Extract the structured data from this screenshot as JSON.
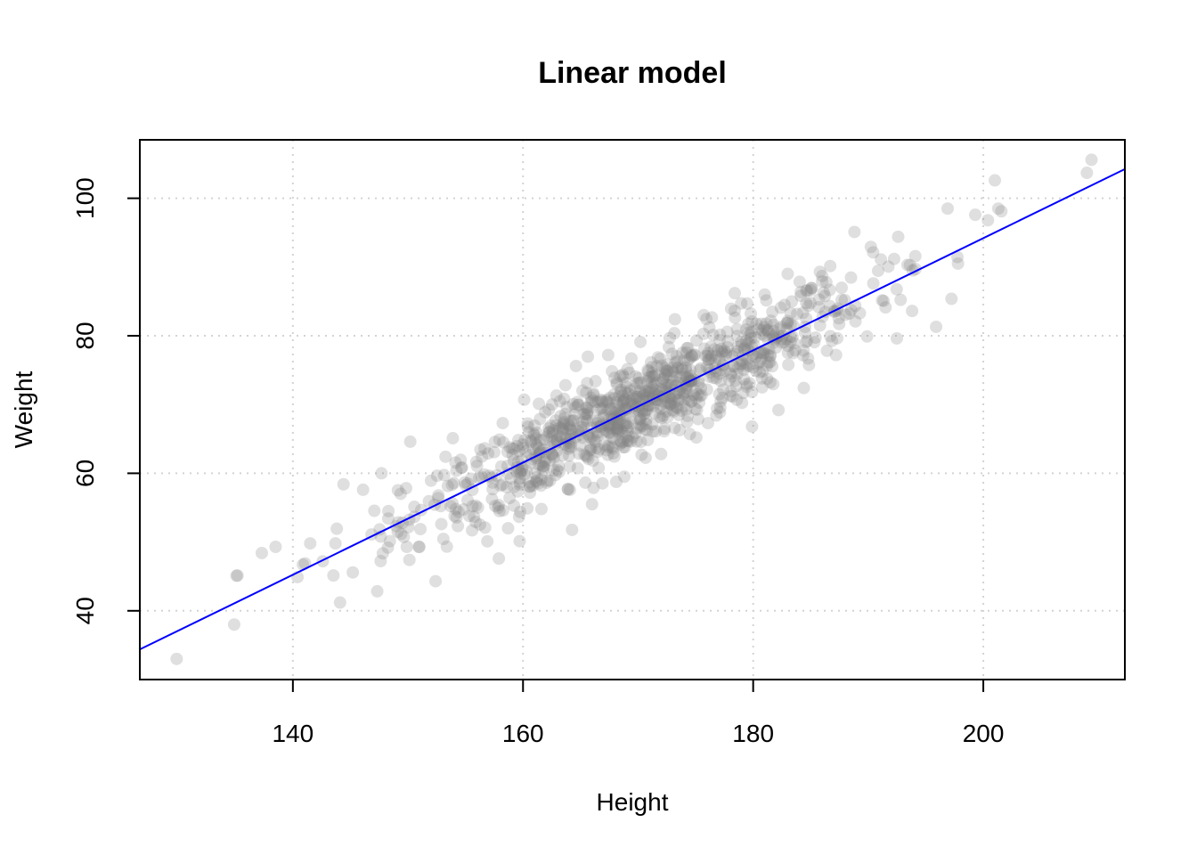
{
  "chart_data": {
    "type": "scatter",
    "title": "Linear model",
    "xlabel": "Height",
    "ylabel": "Weight",
    "xlim": [
      126.7,
      212.3
    ],
    "ylim": [
      30.0,
      108.5
    ],
    "x_ticks": [
      140,
      160,
      180,
      200
    ],
    "y_ticks": [
      40,
      60,
      80,
      100
    ],
    "grid": true,
    "point_color": "#808080",
    "line_color": "#0000ff",
    "fit_line": {
      "slope": 0.816,
      "intercept": -69.0
    },
    "n_points": 1000,
    "points": [
      [
        129.9,
        33.0
      ],
      [
        134.9,
        38.0
      ],
      [
        135.1,
        45.1
      ],
      [
        137.3,
        48.4
      ],
      [
        138.5,
        49.3
      ],
      [
        140.4,
        44.9
      ],
      [
        142.6,
        47.2
      ],
      [
        143.7,
        49.8
      ],
      [
        144.1,
        41.2
      ],
      [
        144.4,
        58.4
      ],
      [
        146.1,
        57.6
      ],
      [
        147.7,
        60.0
      ],
      [
        148.3,
        54.5
      ],
      [
        149.9,
        49.3
      ],
      [
        150.2,
        64.6
      ],
      [
        152.4,
        44.3
      ],
      [
        153.9,
        65.1
      ],
      [
        155.2,
        58.5
      ],
      [
        156.9,
        50.1
      ],
      [
        157.9,
        47.6
      ],
      [
        158.7,
        52.0
      ],
      [
        160.1,
        70.7
      ],
      [
        161.6,
        54.8
      ],
      [
        162.9,
        71.3
      ],
      [
        163.9,
        57.7
      ],
      [
        164.6,
        75.6
      ],
      [
        166.0,
        55.5
      ],
      [
        167.4,
        77.2
      ],
      [
        168.8,
        59.5
      ],
      [
        170.2,
        79.1
      ],
      [
        172.0,
        62.8
      ],
      [
        173.2,
        82.4
      ],
      [
        174.5,
        65.7
      ],
      [
        175.7,
        83.0
      ],
      [
        176.8,
        68.4
      ],
      [
        178.4,
        86.2
      ],
      [
        179.9,
        66.8
      ],
      [
        181.0,
        86.0
      ],
      [
        182.2,
        69.2
      ],
      [
        183.0,
        89.0
      ],
      [
        184.4,
        72.4
      ],
      [
        185.8,
        89.3
      ],
      [
        187.2,
        77.2
      ],
      [
        188.8,
        95.1
      ],
      [
        189.9,
        79.9
      ],
      [
        191.1,
        91.1
      ],
      [
        192.6,
        94.4
      ],
      [
        194.1,
        89.7
      ],
      [
        195.9,
        81.3
      ],
      [
        196.9,
        98.5
      ],
      [
        197.8,
        90.5
      ],
      [
        199.3,
        97.6
      ],
      [
        200.4,
        96.8
      ],
      [
        201.0,
        102.6
      ],
      [
        201.3,
        98.5
      ],
      [
        209.0,
        103.7
      ],
      [
        209.4,
        105.6
      ]
    ]
  }
}
